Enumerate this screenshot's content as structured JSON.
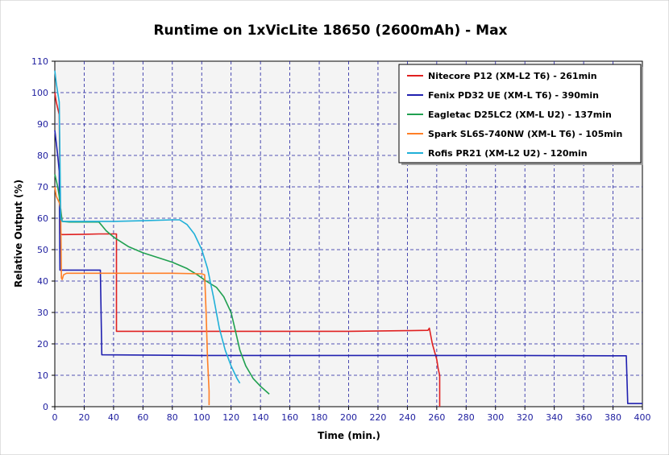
{
  "chart_data": {
    "type": "line",
    "title": "Runtime on 1xVicLite 18650 (2600mAh) - Max",
    "xlabel": "Time (min.)",
    "ylabel": "Relative Output (%)",
    "xlim": [
      0,
      400
    ],
    "ylim": [
      0,
      110
    ],
    "xticks": [
      0,
      20,
      40,
      60,
      80,
      100,
      120,
      140,
      160,
      180,
      200,
      220,
      240,
      260,
      280,
      300,
      320,
      340,
      360,
      380,
      400
    ],
    "yticks": [
      0,
      10,
      20,
      30,
      40,
      50,
      60,
      70,
      80,
      90,
      100,
      110
    ],
    "grid": true,
    "legend_position": "top-right",
    "series": [
      {
        "name": "Nitecore P12 (XM-L2 T6) - 261min",
        "color": "#e02020",
        "points": [
          [
            0,
            100
          ],
          [
            1,
            97
          ],
          [
            2,
            95
          ],
          [
            3,
            93
          ],
          [
            3.5,
            70
          ],
          [
            4,
            55
          ],
          [
            5,
            54.8
          ],
          [
            20,
            54.9
          ],
          [
            30,
            55
          ],
          [
            42,
            55
          ],
          [
            42,
            24
          ],
          [
            60,
            24
          ],
          [
            100,
            24
          ],
          [
            150,
            24
          ],
          [
            200,
            24
          ],
          [
            240,
            24.2
          ],
          [
            254,
            24.3
          ],
          [
            255,
            25
          ],
          [
            257,
            20
          ],
          [
            260,
            15
          ],
          [
            261,
            12
          ],
          [
            262,
            10
          ],
          [
            262,
            0
          ]
        ]
      },
      {
        "name": "Fenix PD32 UE (XM-L T6) - 390min",
        "color": "#2020b0",
        "points": [
          [
            0,
            88
          ],
          [
            1,
            84
          ],
          [
            2,
            80
          ],
          [
            3,
            75
          ],
          [
            3.5,
            43.5
          ],
          [
            10,
            43.5
          ],
          [
            20,
            43.5
          ],
          [
            31,
            43.5
          ],
          [
            32,
            16.5
          ],
          [
            100,
            16.3
          ],
          [
            200,
            16.3
          ],
          [
            300,
            16.3
          ],
          [
            389,
            16.2
          ],
          [
            390,
            1
          ],
          [
            400,
            1
          ]
        ]
      },
      {
        "name": "Eagletac D25LC2 (XM-L U2) - 137min",
        "color": "#20a050",
        "points": [
          [
            0,
            74
          ],
          [
            1,
            72
          ],
          [
            2,
            70
          ],
          [
            3,
            67
          ],
          [
            4,
            63
          ],
          [
            5,
            59
          ],
          [
            10,
            58.8
          ],
          [
            20,
            58.8
          ],
          [
            30,
            58.8
          ],
          [
            35,
            56
          ],
          [
            40,
            54
          ],
          [
            50,
            51
          ],
          [
            60,
            49
          ],
          [
            70,
            47.5
          ],
          [
            80,
            46
          ],
          [
            90,
            44
          ],
          [
            97,
            42
          ],
          [
            103,
            40
          ],
          [
            110,
            38
          ],
          [
            115,
            35
          ],
          [
            120,
            30
          ],
          [
            123,
            24
          ],
          [
            126,
            18
          ],
          [
            130,
            13
          ],
          [
            135,
            9
          ],
          [
            140,
            6.5
          ],
          [
            146,
            4
          ]
        ]
      },
      {
        "name": "Spark SL6S-740NW (XM-L T6) - 105min",
        "color": "#ff7f27",
        "points": [
          [
            0,
            70
          ],
          [
            1,
            67
          ],
          [
            2,
            66
          ],
          [
            3,
            65
          ],
          [
            4,
            63
          ],
          [
            4.5,
            41
          ],
          [
            5,
            40.5
          ],
          [
            6,
            42
          ],
          [
            8,
            42.5
          ],
          [
            20,
            42.5
          ],
          [
            40,
            42.5
          ],
          [
            60,
            42.5
          ],
          [
            80,
            42.5
          ],
          [
            100,
            42.3
          ],
          [
            102,
            42
          ],
          [
            103,
            30
          ],
          [
            104,
            15
          ],
          [
            105,
            5
          ],
          [
            105,
            0.5
          ]
        ]
      },
      {
        "name": "Rofis PR21 (XM-L2 U2) - 120min",
        "color": "#20b0d8",
        "points": [
          [
            0,
            107
          ],
          [
            1,
            103
          ],
          [
            2,
            100
          ],
          [
            3,
            97
          ],
          [
            4,
            60
          ],
          [
            5,
            59
          ],
          [
            10,
            59
          ],
          [
            20,
            59
          ],
          [
            40,
            59
          ],
          [
            60,
            59.2
          ],
          [
            80,
            59.5
          ],
          [
            85,
            59.5
          ],
          [
            90,
            58
          ],
          [
            95,
            55
          ],
          [
            100,
            50
          ],
          [
            104,
            44
          ],
          [
            108,
            35
          ],
          [
            112,
            25
          ],
          [
            116,
            18
          ],
          [
            120,
            13
          ],
          [
            124,
            9
          ],
          [
            126,
            7.5
          ]
        ]
      }
    ]
  }
}
